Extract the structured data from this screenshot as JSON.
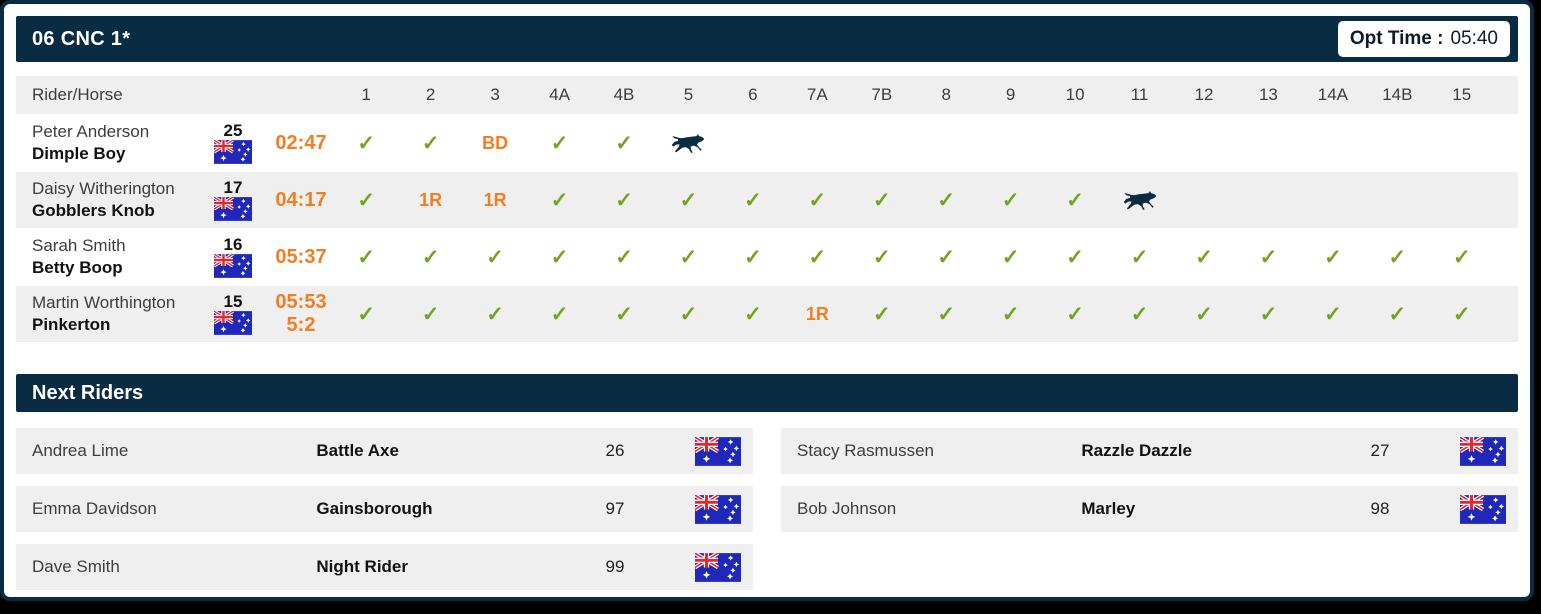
{
  "event": {
    "title": "06 CNC 1*",
    "opt_time_label": "Opt Time :",
    "opt_time_value": "05:40"
  },
  "scoreboard": {
    "rider_horse_header": "Rider/Horse",
    "fences": [
      "1",
      "2",
      "3",
      "4A",
      "4B",
      "5",
      "6",
      "7A",
      "7B",
      "8",
      "9",
      "10",
      "11",
      "12",
      "13",
      "14A",
      "14B",
      "15"
    ],
    "rows": [
      {
        "rider": "Peter Anderson",
        "horse": "Dimple Boy",
        "number": "25",
        "flag": "australia-flag",
        "time": "02:47",
        "time2": "",
        "results": [
          "check",
          "check",
          "BD",
          "check",
          "check",
          "horse",
          "",
          "",
          "",
          "",
          "",
          "",
          "",
          "",
          "",
          "",
          "",
          ""
        ]
      },
      {
        "rider": "Daisy Witherington",
        "horse": "Gobblers Knob",
        "number": "17",
        "flag": "australia-flag",
        "time": "04:17",
        "time2": "",
        "results": [
          "check",
          "1R",
          "1R",
          "check",
          "check",
          "check",
          "check",
          "check",
          "check",
          "check",
          "check",
          "check",
          "horse",
          "",
          "",
          "",
          "",
          ""
        ]
      },
      {
        "rider": "Sarah Smith",
        "horse": "Betty Boop",
        "number": "16",
        "flag": "australia-flag",
        "time": "05:37",
        "time2": "",
        "results": [
          "check",
          "check",
          "check",
          "check",
          "check",
          "check",
          "check",
          "check",
          "check",
          "check",
          "check",
          "check",
          "check",
          "check",
          "check",
          "check",
          "check",
          "check"
        ]
      },
      {
        "rider": "Martin Worthington",
        "horse": "Pinkerton",
        "number": "15",
        "flag": "australia-flag",
        "time": "05:53",
        "time2": "5:2",
        "results": [
          "check",
          "check",
          "check",
          "check",
          "check",
          "check",
          "check",
          "1R",
          "check",
          "check",
          "check",
          "check",
          "check",
          "check",
          "check",
          "check",
          "check",
          "check"
        ]
      }
    ]
  },
  "next_riders": {
    "title": "Next Riders",
    "entries": [
      {
        "rider": "Andrea Lime",
        "horse": "Battle Axe",
        "number": "26",
        "flag": "australia-flag"
      },
      {
        "rider": "Stacy Rasmussen",
        "horse": "Razzle Dazzle",
        "number": "27",
        "flag": "australia-flag"
      },
      {
        "rider": "Emma Davidson",
        "horse": "Gainsborough",
        "number": "97",
        "flag": "australia-flag"
      },
      {
        "rider": "Bob Johnson",
        "horse": "Marley",
        "number": "98",
        "flag": "australia-flag"
      },
      {
        "rider": "Dave Smith",
        "horse": "Night Rider",
        "number": "99",
        "flag": "australia-flag"
      }
    ]
  },
  "icons": {
    "check": "check-icon",
    "horse": "horse-position-icon",
    "check_glyph": "✓"
  },
  "colors": {
    "navy": "#0a2c42",
    "orange": "#f47d1f",
    "green": "#72a41f",
    "row_gray": "#efefef",
    "flag_blue": "#1f28b8",
    "flag_red": "#e8252d"
  }
}
